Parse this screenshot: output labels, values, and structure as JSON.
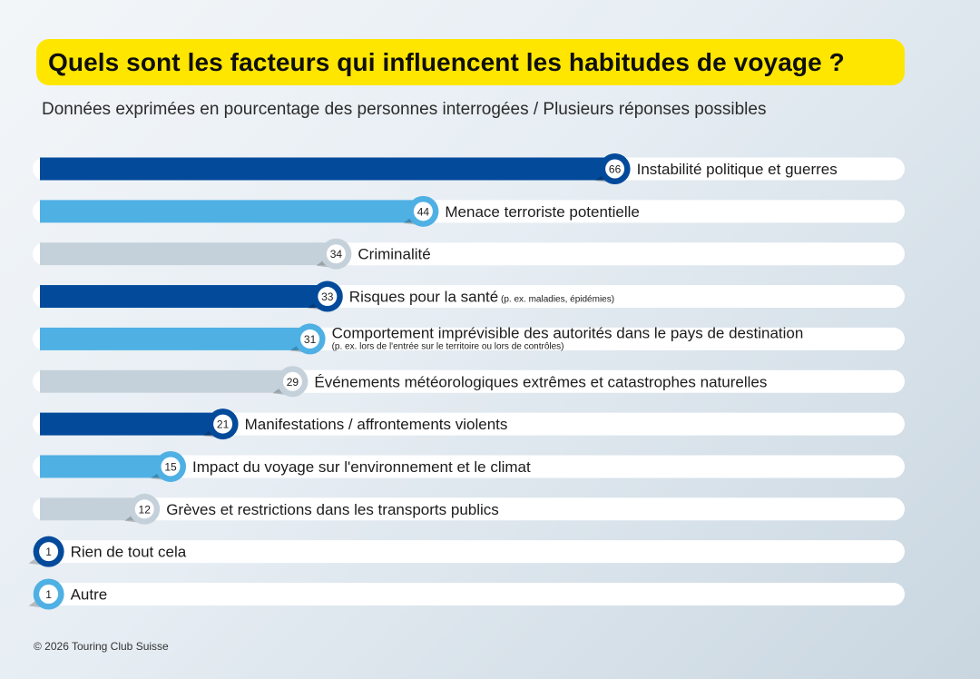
{
  "title": "Quels sont les facteurs qui influencent les habitudes de voyage ?",
  "subtitle": "Données exprimées en pourcentage des personnes interrogées / Plusieurs réponses possibles",
  "footer": "© 2026 Touring Club Suisse",
  "colors": {
    "dark_blue": "#034a9b",
    "light_blue": "#4fb0e4",
    "grey": "#c5d1da",
    "track": "#ffffff",
    "title_bg": "#ffe600"
  },
  "chart_data": {
    "type": "bar",
    "orientation": "horizontal",
    "unit": "%",
    "xlim": [
      0,
      100
    ],
    "bars": [
      {
        "label": "Instabilité politique et guerres",
        "note": "",
        "value": 66,
        "color": "dark_blue"
      },
      {
        "label": "Menace terroriste potentielle",
        "note": "",
        "value": 44,
        "color": "light_blue"
      },
      {
        "label": "Criminalité",
        "note": "",
        "value": 34,
        "color": "grey"
      },
      {
        "label": "Risques pour la santé",
        "note": "(p. ex. maladies, épidémies)",
        "value": 33,
        "color": "dark_blue"
      },
      {
        "label": "Comportement imprévisible des autorités dans le pays de destination",
        "note": "(p. ex. lors de l'entrée sur le territoire ou lors de contrôles)",
        "value": 31,
        "color": "light_blue"
      },
      {
        "label": "Événements météorologiques extrêmes et catastrophes naturelles",
        "note": "",
        "value": 29,
        "color": "grey"
      },
      {
        "label": "Manifestations / affrontements violents",
        "note": "",
        "value": 21,
        "color": "dark_blue"
      },
      {
        "label": "Impact du voyage sur l'environnement et le climat",
        "note": "",
        "value": 15,
        "color": "light_blue"
      },
      {
        "label": "Grèves et restrictions dans les transports publics",
        "note": "",
        "value": 12,
        "color": "grey"
      },
      {
        "label": "Rien de tout cela",
        "note": "",
        "value": 1,
        "color": "dark_blue"
      },
      {
        "label": "Autre",
        "note": "",
        "value": 1,
        "color": "light_blue"
      }
    ]
  }
}
